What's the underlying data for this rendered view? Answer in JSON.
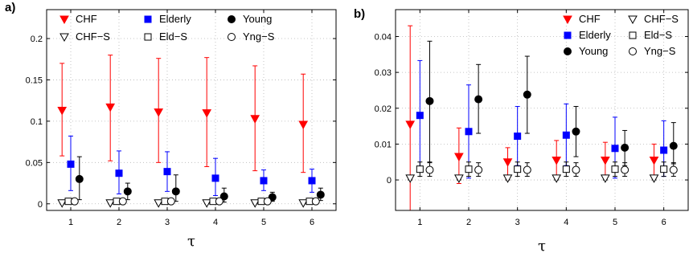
{
  "chart_data": [
    {
      "type": "scatter",
      "panel_label": "a)",
      "xlabel": "τ",
      "ylabel": "",
      "x": [
        1,
        2,
        3,
        4,
        5,
        6
      ],
      "xlim": [
        0.5,
        6.5
      ],
      "ylim": [
        -0.008,
        0.235
      ],
      "xticks": [
        "1",
        "2",
        "3",
        "4",
        "5",
        "6"
      ],
      "yticks": [
        0,
        0.05,
        0.1,
        0.15,
        0.2
      ],
      "ytick_labels": [
        "0",
        "0.05",
        "0.1",
        "0.15",
        "0.2"
      ],
      "grid": true,
      "legend": {
        "placement": "top",
        "columns": 3
      },
      "series": [
        {
          "name": "CHF",
          "color": "#ff0000",
          "marker": "triangle-down",
          "filled": true,
          "offset": -0.18,
          "values": [
            0.113,
            0.117,
            0.111,
            0.11,
            0.103,
            0.096
          ],
          "err": [
            [
              0.058,
              0.17
            ],
            [
              0.052,
              0.18
            ],
            [
              0.05,
              0.176
            ],
            [
              0.045,
              0.177
            ],
            [
              0.04,
              0.167
            ],
            [
              0.038,
              0.157
            ]
          ]
        },
        {
          "name": "Elderly",
          "color": "#0000ff",
          "marker": "square",
          "filled": true,
          "offset": 0.0,
          "values": [
            0.048,
            0.037,
            0.039,
            0.031,
            0.028,
            0.028
          ],
          "err": [
            [
              0.016,
              0.082
            ],
            [
              0.012,
              0.064
            ],
            [
              0.015,
              0.063
            ],
            [
              0.01,
              0.055
            ],
            [
              0.016,
              0.041
            ],
            [
              0.014,
              0.042
            ]
          ]
        },
        {
          "name": "Young",
          "color": "#000000",
          "marker": "circle",
          "filled": true,
          "offset": 0.18,
          "values": [
            0.03,
            0.015,
            0.015,
            0.009,
            0.008,
            0.011
          ],
          "err": [
            [
              0.005,
              0.057
            ],
            [
              0.005,
              0.025
            ],
            [
              0.003,
              0.035
            ],
            [
              0.002,
              0.019
            ],
            [
              0.003,
              0.014
            ],
            [
              0.004,
              0.019
            ]
          ]
        },
        {
          "name": "CHF−S",
          "color": "#000000",
          "marker": "triangle-down",
          "filled": false,
          "offset": -0.18,
          "values": [
            0.001,
            0.001,
            0.001,
            0.001,
            0.001,
            0.001
          ],
          "err": [
            [
              0.0,
              0.002
            ],
            [
              0.0,
              0.002
            ],
            [
              0.0,
              0.002
            ],
            [
              0.0,
              0.002
            ],
            [
              0.0,
              0.002
            ],
            [
              0.0,
              0.002
            ]
          ]
        },
        {
          "name": "Eld−S",
          "color": "#000000",
          "marker": "square",
          "filled": false,
          "offset": -0.05,
          "values": [
            0.003,
            0.003,
            0.003,
            0.003,
            0.003,
            0.003
          ],
          "err": [
            [
              0.001,
              0.005
            ],
            [
              0.001,
              0.005
            ],
            [
              0.001,
              0.005
            ],
            [
              0.001,
              0.005
            ],
            [
              0.001,
              0.005
            ],
            [
              0.001,
              0.005
            ]
          ]
        },
        {
          "name": "Yng−S",
          "color": "#000000",
          "marker": "circle",
          "filled": false,
          "offset": 0.08,
          "values": [
            0.003,
            0.003,
            0.003,
            0.003,
            0.003,
            0.003
          ],
          "err": [
            [
              0.001,
              0.005
            ],
            [
              0.001,
              0.005
            ],
            [
              0.001,
              0.005
            ],
            [
              0.001,
              0.005
            ],
            [
              0.001,
              0.005
            ],
            [
              0.001,
              0.005
            ]
          ]
        }
      ]
    },
    {
      "type": "scatter",
      "panel_label": "b)",
      "xlabel": "τ",
      "ylabel": "",
      "x": [
        1,
        2,
        3,
        4,
        5,
        6
      ],
      "xlim": [
        0.5,
        6.5
      ],
      "ylim": [
        -0.0085,
        0.0475
      ],
      "xticks": [
        "1",
        "2",
        "3",
        "4",
        "5",
        "6"
      ],
      "yticks": [
        0,
        0.01,
        0.02,
        0.03,
        0.04
      ],
      "ytick_labels": [
        "0",
        "0.01",
        "0.02",
        "0.03",
        "0.04"
      ],
      "grid": true,
      "legend": {
        "placement": "top",
        "columns": 2
      },
      "series": [
        {
          "name": "CHF",
          "color": "#ff0000",
          "marker": "triangle-down",
          "filled": true,
          "offset": -0.2,
          "values": [
            0.0155,
            0.0065,
            0.005,
            0.0055,
            0.0055,
            0.0055
          ],
          "err": [
            [
              -0.0085,
              0.043
            ],
            [
              -0.001,
              0.0145
            ],
            [
              0.0,
              0.009
            ],
            [
              0.0005,
              0.011
            ],
            [
              0.0005,
              0.0105
            ],
            [
              0.0005,
              0.01
            ]
          ]
        },
        {
          "name": "Elderly",
          "color": "#0000ff",
          "marker": "square",
          "filled": true,
          "offset": 0.0,
          "values": [
            0.018,
            0.0135,
            0.0122,
            0.0125,
            0.0088,
            0.0083
          ],
          "err": [
            [
              0.0025,
              0.0333
            ],
            [
              0.0005,
              0.0265
            ],
            [
              0.004,
              0.0205
            ],
            [
              0.004,
              0.0212
            ],
            [
              0.0005,
              0.0175
            ],
            [
              0.001,
              0.0165
            ]
          ]
        },
        {
          "name": "Young",
          "color": "#000000",
          "marker": "circle",
          "filled": true,
          "offset": 0.2,
          "values": [
            0.022,
            0.0225,
            0.0238,
            0.0135,
            0.009,
            0.0095
          ],
          "err": [
            [
              0.005,
              0.0387
            ],
            [
              0.013,
              0.0322
            ],
            [
              0.013,
              0.0345
            ],
            [
              0.0065,
              0.0205
            ],
            [
              0.004,
              0.0138
            ],
            [
              0.0045,
              0.016
            ]
          ]
        },
        {
          "name": "CHF−S",
          "color": "#000000",
          "marker": "triangle-down",
          "filled": false,
          "offset": -0.2,
          "values": [
            0.0005,
            0.0005,
            0.0005,
            0.0005,
            0.0005,
            0.0005
          ],
          "err": [
            [
              0.0,
              0.001
            ],
            [
              0.0,
              0.001
            ],
            [
              0.0,
              0.001
            ],
            [
              0.0,
              0.001
            ],
            [
              0.0,
              0.001
            ],
            [
              0.0,
              0.001
            ]
          ]
        },
        {
          "name": "Eld−S",
          "color": "#000000",
          "marker": "square",
          "filled": false,
          "offset": 0.0,
          "values": [
            0.003,
            0.003,
            0.003,
            0.003,
            0.003,
            0.003
          ],
          "err": [
            [
              0.001,
              0.005
            ],
            [
              0.001,
              0.005
            ],
            [
              0.001,
              0.005
            ],
            [
              0.001,
              0.005
            ],
            [
              0.001,
              0.005
            ],
            [
              0.001,
              0.005
            ]
          ]
        },
        {
          "name": "Yng−S",
          "color": "#000000",
          "marker": "circle",
          "filled": false,
          "offset": 0.2,
          "values": [
            0.0028,
            0.0028,
            0.0028,
            0.0028,
            0.0028,
            0.0028
          ],
          "err": [
            [
              0.001,
              0.0048
            ],
            [
              0.001,
              0.0048
            ],
            [
              0.001,
              0.0048
            ],
            [
              0.001,
              0.0048
            ],
            [
              0.001,
              0.0048
            ],
            [
              0.001,
              0.0048
            ]
          ]
        }
      ]
    }
  ]
}
